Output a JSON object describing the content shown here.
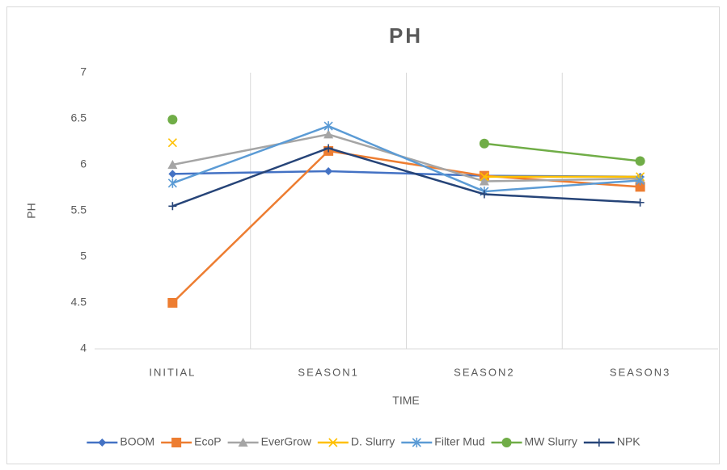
{
  "chart_data": {
    "type": "line",
    "title": "PH",
    "x_label": "TIME",
    "y_label": "PH",
    "categories": [
      "INITIAL",
      "SEASON1",
      "SEASON2",
      "SEASON3"
    ],
    "series": [
      {
        "name": "BOOM",
        "color": "#4472c4",
        "marker": "diamond",
        "values": [
          5.9,
          5.93,
          5.88,
          5.87
        ]
      },
      {
        "name": "EcoP",
        "color": "#ed7d31",
        "marker": "square",
        "values": [
          4.5,
          6.15,
          5.88,
          5.76
        ]
      },
      {
        "name": "EverGrow",
        "color": "#a5a5a5",
        "marker": "triangle",
        "values": [
          6.0,
          6.33,
          5.82,
          5.85
        ]
      },
      {
        "name": "D. Slurry",
        "color": "#ffc000",
        "marker": "x",
        "values": [
          6.24,
          null,
          5.87,
          5.87
        ]
      },
      {
        "name": "Filter Mud",
        "color": "#5b9bd5",
        "marker": "star",
        "values": [
          5.8,
          6.42,
          5.71,
          5.83
        ]
      },
      {
        "name": "MW Slurry",
        "color": "#70ad47",
        "marker": "circle",
        "values": [
          6.49,
          null,
          6.23,
          6.04
        ]
      },
      {
        "name": "NPK",
        "color": "#264478",
        "marker": "plus",
        "values": [
          5.55,
          6.18,
          5.68,
          5.59
        ]
      }
    ],
    "ylim": [
      4,
      7
    ],
    "yticks": [
      4,
      4.5,
      5,
      5.5,
      6,
      6.5,
      7
    ],
    "grid": "vertical",
    "legend": "bottom"
  }
}
